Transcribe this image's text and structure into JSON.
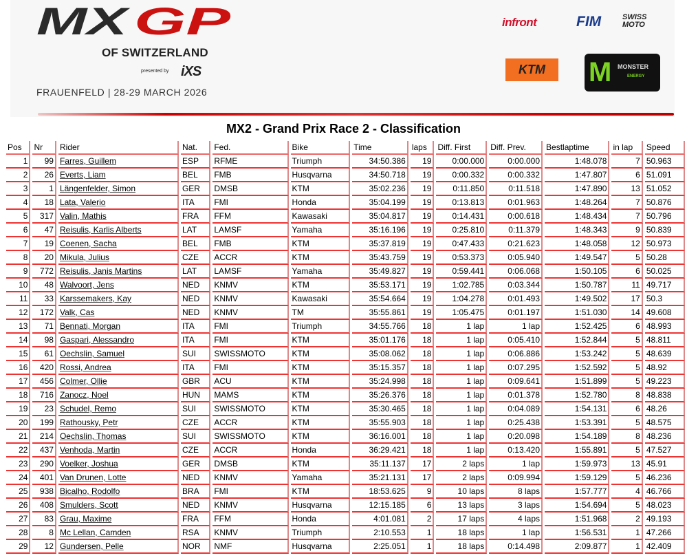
{
  "header": {
    "event_logo": "MXGP",
    "event_subtitle": "OF SWITZERLAND",
    "presented_by": "presented by",
    "presenter_logo": "iXS",
    "dates": "FRAUENFELD | 28-29 MARCH 2026",
    "sponsors": [
      "infront",
      "FIM",
      "SWISS MOTO",
      "KTM",
      "MONSTER ENERGY"
    ]
  },
  "title": "MX2 - Grand Prix Race 2 - Classification",
  "colors": {
    "accent": "#dd2222",
    "ktm": "#f26f21",
    "monster_green": "#7dd321"
  },
  "table": {
    "columns": [
      "Pos",
      "Nr",
      "Rider",
      "Nat.",
      "Fed.",
      "Bike",
      "Time",
      "laps",
      "Diff. First",
      "Diff. Prev.",
      "Bestlaptime",
      "in lap",
      "Speed"
    ],
    "rows": [
      [
        "1",
        "99",
        "Farres, Guillem",
        "ESP",
        "RFME",
        "Triumph",
        "34:50.386",
        "19",
        "0:00.000",
        "0:00.000",
        "1:48.078",
        "7",
        "50.963"
      ],
      [
        "2",
        "26",
        "Everts, Liam",
        "BEL",
        "FMB",
        "Husqvarna",
        "34:50.718",
        "19",
        "0:00.332",
        "0:00.332",
        "1:47.807",
        "6",
        "51.091"
      ],
      [
        "3",
        "1",
        "Längenfelder, Simon",
        "GER",
        "DMSB",
        "KTM",
        "35:02.236",
        "19",
        "0:11.850",
        "0:11.518",
        "1:47.890",
        "13",
        "51.052"
      ],
      [
        "4",
        "18",
        "Lata, Valerio",
        "ITA",
        "FMI",
        "Honda",
        "35:04.199",
        "19",
        "0:13.813",
        "0:01.963",
        "1:48.264",
        "7",
        "50.876"
      ],
      [
        "5",
        "317",
        "Valin, Mathis",
        "FRA",
        "FFM",
        "Kawasaki",
        "35:04.817",
        "19",
        "0:14.431",
        "0:00.618",
        "1:48.434",
        "7",
        "50.796"
      ],
      [
        "6",
        "47",
        "Reisulis, Karlis Alberts",
        "LAT",
        "LAMSF",
        "Yamaha",
        "35:16.196",
        "19",
        "0:25.810",
        "0:11.379",
        "1:48.343",
        "9",
        "50.839"
      ],
      [
        "7",
        "19",
        "Coenen, Sacha",
        "BEL",
        "FMB",
        "KTM",
        "35:37.819",
        "19",
        "0:47.433",
        "0:21.623",
        "1:48.058",
        "12",
        "50.973"
      ],
      [
        "8",
        "20",
        "Mikula, Julius",
        "CZE",
        "ACCR",
        "KTM",
        "35:43.759",
        "19",
        "0:53.373",
        "0:05.940",
        "1:49.547",
        "5",
        "50.28"
      ],
      [
        "9",
        "772",
        "Reisulis, Janis Martins",
        "LAT",
        "LAMSF",
        "Yamaha",
        "35:49.827",
        "19",
        "0:59.441",
        "0:06.068",
        "1:50.105",
        "6",
        "50.025"
      ],
      [
        "10",
        "48",
        "Walvoort, Jens",
        "NED",
        "KNMV",
        "KTM",
        "35:53.171",
        "19",
        "1:02.785",
        "0:03.344",
        "1:50.787",
        "11",
        "49.717"
      ],
      [
        "11",
        "33",
        "Karssemakers, Kay",
        "NED",
        "KNMV",
        "Kawasaki",
        "35:54.664",
        "19",
        "1:04.278",
        "0:01.493",
        "1:49.502",
        "17",
        "50.3"
      ],
      [
        "12",
        "172",
        "Valk, Cas",
        "NED",
        "KNMV",
        "TM",
        "35:55.861",
        "19",
        "1:05.475",
        "0:01.197",
        "1:51.030",
        "14",
        "49.608"
      ],
      [
        "13",
        "71",
        "Bennati, Morgan",
        "ITA",
        "FMI",
        "Triumph",
        "34:55.766",
        "18",
        "1 lap",
        "1 lap",
        "1:52.425",
        "6",
        "48.993"
      ],
      [
        "14",
        "98",
        "Gaspari, Alessandro",
        "ITA",
        "FMI",
        "KTM",
        "35:01.176",
        "18",
        "1 lap",
        "0:05.410",
        "1:52.844",
        "5",
        "48.811"
      ],
      [
        "15",
        "61",
        "Oechslin, Samuel",
        "SUI",
        "SWISSMOTO",
        "KTM",
        "35:08.062",
        "18",
        "1 lap",
        "0:06.886",
        "1:53.242",
        "5",
        "48.639"
      ],
      [
        "16",
        "420",
        "Rossi, Andrea",
        "ITA",
        "FMI",
        "KTM",
        "35:15.357",
        "18",
        "1 lap",
        "0:07.295",
        "1:52.592",
        "5",
        "48.92"
      ],
      [
        "17",
        "456",
        "Colmer, Ollie",
        "GBR",
        "ACU",
        "KTM",
        "35:24.998",
        "18",
        "1 lap",
        "0:09.641",
        "1:51.899",
        "5",
        "49.223"
      ],
      [
        "18",
        "716",
        "Zanocz, Noel",
        "HUN",
        "MAMS",
        "KTM",
        "35:26.376",
        "18",
        "1 lap",
        "0:01.378",
        "1:52.780",
        "8",
        "48.838"
      ],
      [
        "19",
        "23",
        "Schudel, Remo",
        "SUI",
        "SWISSMOTO",
        "KTM",
        "35:30.465",
        "18",
        "1 lap",
        "0:04.089",
        "1:54.131",
        "6",
        "48.26"
      ],
      [
        "20",
        "199",
        "Rathousky, Petr",
        "CZE",
        "ACCR",
        "KTM",
        "35:55.903",
        "18",
        "1 lap",
        "0:25.438",
        "1:53.391",
        "5",
        "48.575"
      ],
      [
        "21",
        "214",
        "Oechslin, Thomas",
        "SUI",
        "SWISSMOTO",
        "KTM",
        "36:16.001",
        "18",
        "1 lap",
        "0:20.098",
        "1:54.189",
        "8",
        "48.236"
      ],
      [
        "22",
        "437",
        "Venhoda, Martin",
        "CZE",
        "ACCR",
        "Honda",
        "36:29.421",
        "18",
        "1 lap",
        "0:13.420",
        "1:55.891",
        "5",
        "47.527"
      ],
      [
        "23",
        "290",
        "Voelker, Joshua",
        "GER",
        "DMSB",
        "KTM",
        "35:11.137",
        "17",
        "2 laps",
        "1 lap",
        "1:59.973",
        "13",
        "45.91"
      ],
      [
        "24",
        "401",
        "Van Drunen, Lotte",
        "NED",
        "KNMV",
        "Yamaha",
        "35:21.131",
        "17",
        "2 laps",
        "0:09.994",
        "1:59.129",
        "5",
        "46.236"
      ],
      [
        "25",
        "938",
        "Bicalho, Rodolfo",
        "BRA",
        "FMI",
        "KTM",
        "18:53.625",
        "9",
        "10 laps",
        "8 laps",
        "1:57.777",
        "4",
        "46.766"
      ],
      [
        "26",
        "408",
        "Smulders, Scott",
        "NED",
        "KNMV",
        "Husqvarna",
        "12:15.185",
        "6",
        "13 laps",
        "3 laps",
        "1:54.694",
        "5",
        "48.023"
      ],
      [
        "27",
        "83",
        "Grau, Maxime",
        "FRA",
        "FFM",
        "Honda",
        "4:01.081",
        "2",
        "17 laps",
        "4 laps",
        "1:51.968",
        "2",
        "49.193"
      ],
      [
        "28",
        "8",
        "Mc Lellan, Camden",
        "RSA",
        "KNMV",
        "Triumph",
        "2:10.553",
        "1",
        "18 laps",
        "1 lap",
        "1:56.531",
        "1",
        "47.266"
      ],
      [
        "29",
        "12",
        "Gundersen, Pelle",
        "NOR",
        "NMF",
        "Husqvarna",
        "2:25.051",
        "1",
        "18 laps",
        "0:14.498",
        "2:09.877",
        "1",
        "42.409"
      ]
    ]
  }
}
